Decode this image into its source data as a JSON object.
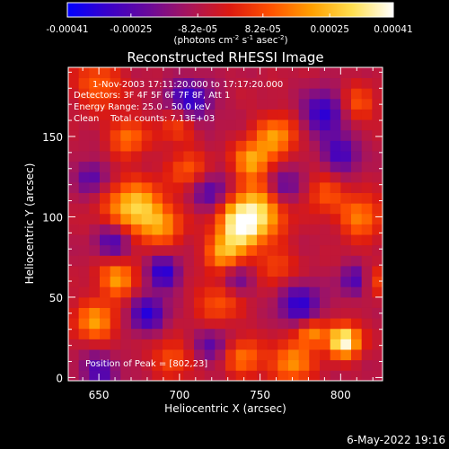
{
  "colorbar": {
    "ticks": [
      "-0.00041",
      "-0.00025",
      "-8.2e-05",
      "8.2e-05",
      "0.00025",
      "0.00041"
    ],
    "tick_values": [
      -0.00041,
      -0.00025,
      -8.2e-05,
      8.2e-05,
      0.00025,
      0.00041
    ],
    "range": [
      -0.00041,
      0.00041
    ],
    "units": "(photons cm",
    "units_exp1": "-2",
    "units_mid": " s",
    "units_exp2": "-1",
    "units_tail": " asec",
    "units_exp3": "-2",
    "units_close": ")",
    "colors": [
      "#0000ff",
      "#3a00c8",
      "#6a0a9a",
      "#a8155a",
      "#dd1a10",
      "#ff5200",
      "#ffa000",
      "#ffe050",
      "#ffffff"
    ]
  },
  "chart_data": {
    "type": "heatmap",
    "title": "Reconstructed RHESSI Image",
    "xlabel": "Heliocentric X (arcsec)",
    "ylabel": "Heliocentric Y (arcsec)",
    "xlim": [
      631,
      826
    ],
    "ylim": [
      -2,
      193
    ],
    "x_ticks": [
      650,
      700,
      750,
      800
    ],
    "y_ticks": [
      0,
      50,
      100,
      150
    ],
    "x_tick_labels": [
      "650",
      "700",
      "750",
      "800"
    ],
    "y_tick_labels": [
      "0",
      "50",
      "100",
      "150"
    ],
    "annotations": {
      "time": "1-Nov-2003 17:11:20.000 to 17:17:20.000",
      "detectors": "Detectors: 3F 4F 5F 6F 7F 8F, Att 1",
      "energy": "Energy Range: 25.0 - 50.0 keV",
      "clean_label": "Clean",
      "total_counts": "Total counts: 7.13E+03",
      "peak": "Position of Peak = [802,23]"
    },
    "grid": {
      "nx": 30,
      "ny": 30,
      "x0": 631,
      "dx": 6.5,
      "y0": -2,
      "dy": 6.5,
      "blobs": [
        [
          802,
          23,
          1.0,
          7
        ],
        [
          782,
          28,
          0.55,
          6
        ],
        [
          738,
          95,
          0.85,
          10
        ],
        [
          750,
          105,
          0.6,
          12
        ],
        [
          728,
          78,
          0.55,
          8
        ],
        [
          672,
          105,
          0.75,
          12
        ],
        [
          690,
          95,
          0.4,
          9
        ],
        [
          662,
          62,
          0.6,
          8
        ],
        [
          648,
          35,
          0.55,
          9
        ],
        [
          725,
          48,
          0.35,
          10
        ],
        [
          745,
          135,
          0.6,
          8
        ],
        [
          760,
          150,
          0.55,
          9
        ],
        [
          700,
          160,
          0.5,
          9
        ],
        [
          668,
          150,
          0.45,
          8
        ],
        [
          812,
          100,
          0.5,
          9
        ],
        [
          790,
          115,
          0.35,
          8
        ],
        [
          770,
          10,
          0.55,
          9
        ],
        [
          740,
          12,
          0.45,
          8
        ],
        [
          695,
          12,
          0.35,
          8
        ],
        [
          810,
          170,
          0.35,
          8
        ],
        [
          650,
          182,
          0.4,
          10
        ],
        [
          760,
          70,
          0.3,
          8
        ],
        [
          705,
          130,
          0.35,
          8
        ],
        [
          820,
          60,
          0.35,
          7
        ],
        [
          680,
          40,
          -0.55,
          8
        ],
        [
          705,
          170,
          -0.7,
          10
        ],
        [
          790,
          165,
          -0.6,
          9
        ],
        [
          660,
          85,
          -0.5,
          8
        ],
        [
          690,
          65,
          -0.6,
          7
        ],
        [
          775,
          45,
          -0.55,
          9
        ],
        [
          810,
          60,
          -0.5,
          7
        ],
        [
          720,
          115,
          -0.4,
          8
        ],
        [
          650,
          5,
          -0.45,
          8
        ],
        [
          735,
          60,
          -0.35,
          7
        ],
        [
          765,
          120,
          -0.45,
          8
        ],
        [
          645,
          125,
          -0.4,
          7
        ],
        [
          800,
          140,
          -0.5,
          8
        ],
        [
          720,
          20,
          -0.35,
          7
        ]
      ]
    }
  },
  "footer": {
    "date": "6-May-2022 19:16"
  }
}
